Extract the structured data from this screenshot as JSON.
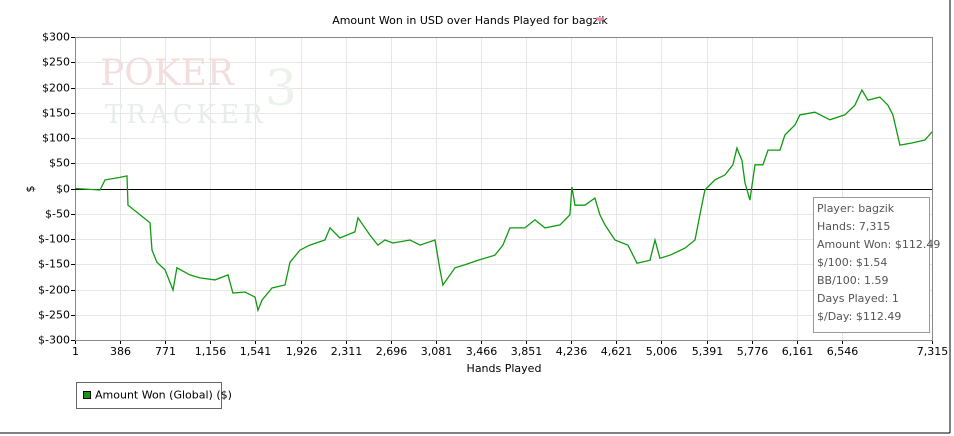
{
  "chart_data": {
    "type": "line",
    "title": "Amount Won in USD over Hands Played for bagzik",
    "x_label": "Hands Played",
    "y_label": "$",
    "watermark": [
      "POKER",
      "TRACKER",
      "3"
    ],
    "xlim": [
      1,
      7315
    ],
    "ylim": [
      -300,
      300
    ],
    "xticks": [
      1,
      386,
      771,
      {
        "value": 1156,
        "label": "1,156"
      },
      {
        "value": 1541,
        "label": "1,541"
      },
      {
        "value": 1926,
        "label": "1,926"
      },
      {
        "value": 2311,
        "label": "2,311"
      },
      {
        "value": 2696,
        "label": "2,696"
      },
      {
        "value": 3081,
        "label": "3,081"
      },
      {
        "value": 3466,
        "label": "3,466"
      },
      {
        "value": 3851,
        "label": "3,851"
      },
      {
        "value": 4236,
        "label": "4,236"
      },
      {
        "value": 4621,
        "label": "4,621"
      },
      {
        "value": 5006,
        "label": "5,006"
      },
      {
        "value": 5391,
        "label": "5,391"
      },
      {
        "value": 5776,
        "label": "5,776"
      },
      {
        "value": 6161,
        "label": "6,161"
      },
      {
        "value": 6546,
        "label": "6,546"
      },
      {
        "value": 7315,
        "label": "7,315"
      }
    ],
    "yticks": [
      {
        "value": -300,
        "label": "$-300"
      },
      {
        "value": -250,
        "label": "$-250"
      },
      {
        "value": -200,
        "label": "$-200"
      },
      {
        "value": -150,
        "label": "$-150"
      },
      {
        "value": -100,
        "label": "$-100"
      },
      {
        "value": -50,
        "label": "$-50"
      },
      {
        "value": 0,
        "label": "$0"
      },
      {
        "value": 50,
        "label": "$50"
      },
      {
        "value": 100,
        "label": "$100"
      },
      {
        "value": 150,
        "label": "$150"
      },
      {
        "value": 200,
        "label": "$200"
      },
      {
        "value": 250,
        "label": "$250"
      },
      {
        "value": 300,
        "label": "$300"
      }
    ],
    "grid": true,
    "legend": "bottom-left",
    "x": [
      1,
      214,
      257,
      385,
      445,
      453,
      556,
      641,
      658,
      700,
      769,
      837,
      871,
      982,
      1068,
      1196,
      1307,
      1349,
      1452,
      1537,
      1563,
      1597,
      1682,
      1793,
      1836,
      1921,
      2006,
      2134,
      2177,
      2262,
      2390,
      2416,
      2518,
      2586,
      2646,
      2714,
      2860,
      2945,
      3073,
      3116,
      3141,
      3244,
      3329,
      3440,
      3585,
      3653,
      3713,
      3841,
      3926,
      4011,
      4140,
      4225,
      4242,
      4268,
      4353,
      4438,
      4481,
      4524,
      4609,
      4720,
      4797,
      4908,
      4951,
      4993,
      5079,
      5207,
      5292,
      5334,
      5377,
      5462,
      5548,
      5616,
      5650,
      5693,
      5719,
      5761,
      5804,
      5872,
      5915,
      6018,
      6060,
      6146,
      6188,
      6316,
      6444,
      6572,
      6657,
      6717,
      6768,
      6870,
      6939,
      6981,
      7041,
      7143,
      7254,
      7315
    ],
    "series": [
      {
        "name": "Amount Won (Global) ($)",
        "color": "#119a11",
        "values": [
          0,
          -3,
          17,
          22,
          25,
          -33,
          -52,
          -68,
          -122,
          -146,
          -161,
          -201,
          -157,
          -171,
          -177,
          -181,
          -171,
          -207,
          -205,
          -215,
          -241,
          -221,
          -197,
          -191,
          -146,
          -122,
          -112,
          -102,
          -78,
          -98,
          -86,
          -58,
          -92,
          -112,
          -102,
          -108,
          -102,
          -112,
          -102,
          -161,
          -191,
          -157,
          -151,
          -142,
          -132,
          -112,
          -78,
          -78,
          -62,
          -78,
          -72,
          -52,
          3,
          -33,
          -33,
          -19,
          -52,
          -72,
          -102,
          -112,
          -148,
          -142,
          -102,
          -138,
          -132,
          -118,
          -102,
          -52,
          -3,
          17,
          27,
          47,
          80,
          56,
          11,
          -23,
          47,
          47,
          76,
          76,
          106,
          126,
          146,
          151,
          136,
          146,
          165,
          195,
          175,
          181,
          165,
          146,
          86,
          90,
          96,
          112
        ]
      }
    ],
    "annotations": [
      "Player: bagzik",
      "Hands: 7,315",
      "Amount Won: $112.49",
      "$/100: $1.54",
      "BB/100: 1.59",
      "Days Played: 1",
      "$/Day: $112.49"
    ]
  }
}
